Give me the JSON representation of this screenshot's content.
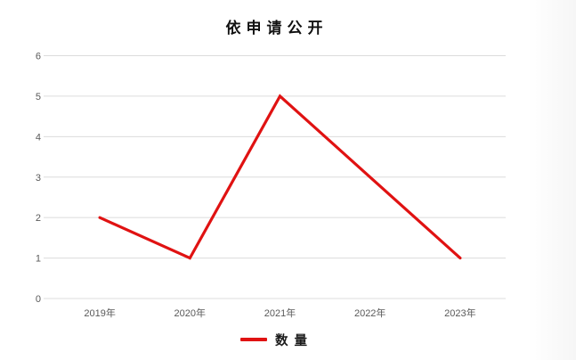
{
  "chart": {
    "title": "依申请公开",
    "legend": {
      "label": "数量",
      "swatch_color": "#e01212"
    }
  },
  "chart_data": {
    "type": "line",
    "title": "依申请公开",
    "categories": [
      "2019年",
      "2020年",
      "2021年",
      "2022年",
      "2023年"
    ],
    "series": [
      {
        "name": "数量",
        "values": [
          2,
          1,
          5,
          3,
          1
        ],
        "color": "#e01212"
      }
    ],
    "xlabel": "",
    "ylabel": "",
    "ylim": [
      0,
      6
    ],
    "ytick_step": 1,
    "yticks": [
      0,
      1,
      2,
      3,
      4,
      5,
      6
    ],
    "grid": true,
    "gridline_color": "#dcdcdc",
    "tick_label_color": "#595959",
    "legend_position": "bottom"
  }
}
